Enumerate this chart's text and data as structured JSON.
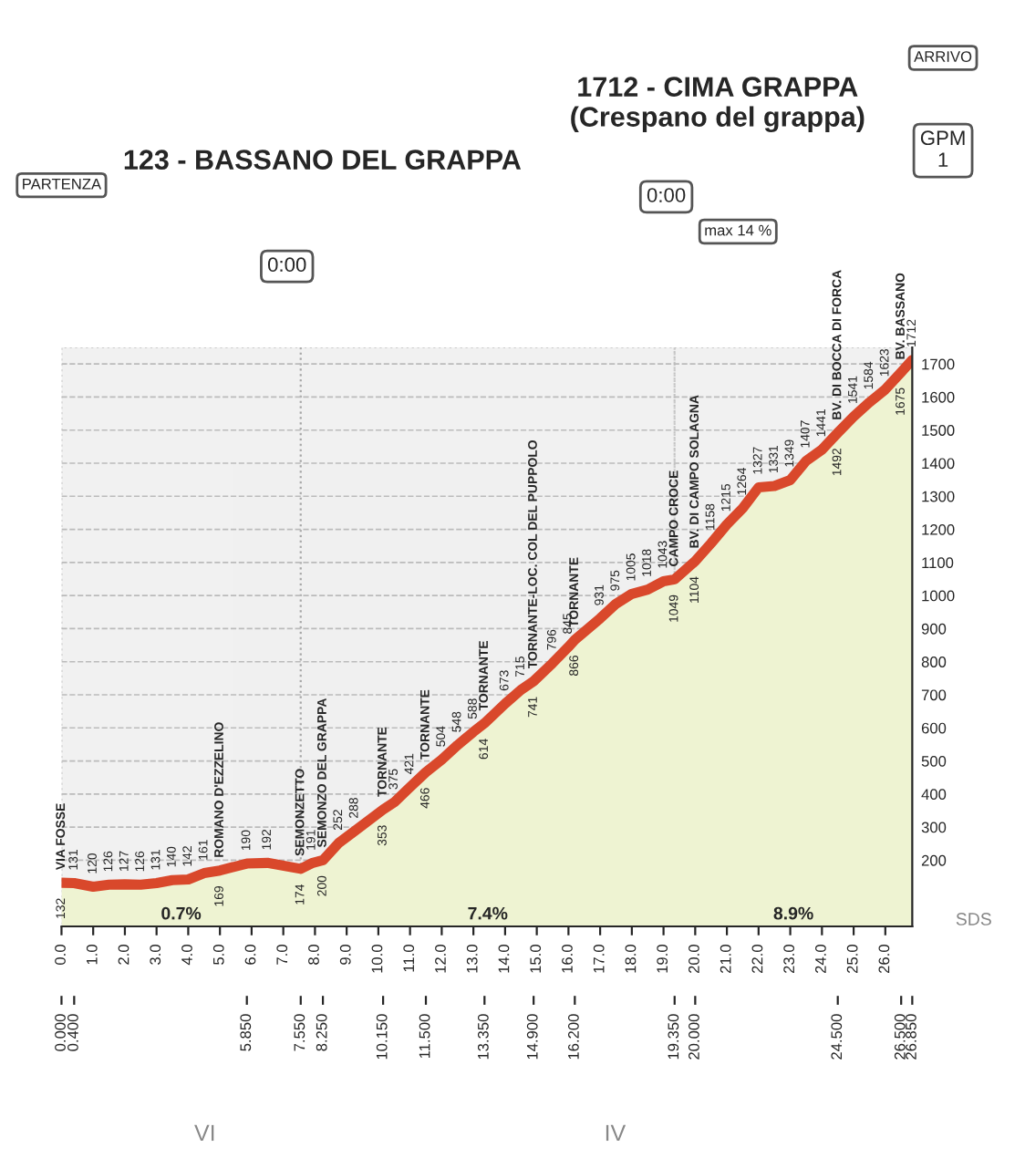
{
  "chart_data": {
    "type": "area",
    "color": "#d9482b",
    "x": [
      0,
      0.4,
      1,
      1.5,
      2,
      2.5,
      3,
      3.5,
      4,
      4.5,
      5,
      5.85,
      6.5,
      7.55,
      7.9,
      8.25,
      8.75,
      9.25,
      10.15,
      10.5,
      11,
      11.5,
      12,
      12.5,
      13,
      13.35,
      14,
      14.5,
      14.9,
      15.5,
      16,
      16.2,
      17,
      17.5,
      18,
      18.5,
      19,
      19.35,
      20,
      20.5,
      21,
      21.5,
      22,
      22.5,
      23,
      23.5,
      24,
      24.5,
      25,
      25.5,
      26,
      26.5,
      26.85
    ],
    "values": [
      132,
      131,
      120,
      126,
      127,
      126,
      131,
      140,
      142,
      161,
      169,
      190,
      192,
      174,
      191,
      200,
      252,
      288,
      353,
      375,
      421,
      466,
      504,
      548,
      588,
      614,
      673,
      715,
      741,
      796,
      845,
      866,
      931,
      975,
      1005,
      1018,
      1043,
      1049,
      1104,
      1158,
      1215,
      1264,
      1327,
      1331,
      1349,
      1407,
      1441,
      1492,
      1541,
      1584,
      1623,
      1675,
      1712
    ],
    "data_labels": true,
    "xlim": [
      0,
      26.85
    ],
    "x2lim": [
      0,
      26.85
    ],
    "ylim": [
      0,
      1750
    ],
    "xticks": [
      {
        "value": 0,
        "label": "0.0"
      },
      {
        "value": 1,
        "label": "1.0"
      },
      {
        "value": 2,
        "label": "2.0"
      },
      {
        "value": 3,
        "label": "3.0"
      },
      {
        "value": 4,
        "label": "4.0"
      },
      {
        "value": 5,
        "label": "5.0"
      },
      {
        "value": 6,
        "label": "6.0"
      },
      {
        "value": 7,
        "label": "7.0"
      },
      {
        "value": 8,
        "label": "8.0"
      },
      {
        "value": 9,
        "label": "9.0"
      },
      {
        "value": 10,
        "label": "10.0"
      },
      {
        "value": 11,
        "label": "11.0"
      },
      {
        "value": 12,
        "label": "12.0"
      },
      {
        "value": 13,
        "label": "13.0"
      },
      {
        "value": 14,
        "label": "14.0"
      },
      {
        "value": 15,
        "label": "15.0"
      },
      {
        "value": 16,
        "label": "16.0"
      },
      {
        "value": 17,
        "label": "17.0"
      },
      {
        "value": 18,
        "label": "18.0"
      },
      {
        "value": 19,
        "label": "19.0"
      },
      {
        "value": 20,
        "label": "20.0"
      },
      {
        "value": 21,
        "label": "21.0"
      },
      {
        "value": 22,
        "label": "22.0"
      },
      {
        "value": 23,
        "label": "23.0"
      },
      {
        "value": 24,
        "label": "24.0"
      },
      {
        "value": 25,
        "label": "25.0"
      },
      {
        "value": 26,
        "label": "26.0"
      }
    ],
    "x2ticks": [
      {
        "value": 0,
        "label": "0.000"
      },
      {
        "value": 0.4,
        "label": "0.400"
      },
      {
        "value": 5.85,
        "label": "5.850"
      },
      {
        "value": 7.55,
        "label": "7.550"
      },
      {
        "value": 8.25,
        "label": "8.250"
      },
      {
        "value": 10.15,
        "label": "10.150"
      },
      {
        "value": 11.5,
        "label": "11.500"
      },
      {
        "value": 13.35,
        "label": "13.350"
      },
      {
        "value": 14.9,
        "label": "14.900"
      },
      {
        "value": 16.2,
        "label": "16.200"
      },
      {
        "value": 19.35,
        "label": "19.350"
      },
      {
        "value": 20,
        "label": "20.000"
      },
      {
        "value": 24.5,
        "label": "24.500"
      },
      {
        "value": 26.5,
        "label": "26.500"
      },
      {
        "value": 26.85,
        "label": "26.850"
      }
    ],
    "yticks": [
      200,
      300,
      400,
      500,
      600,
      700,
      800,
      900,
      1000,
      1100,
      1200,
      1300,
      1400,
      1500,
      1600,
      1700
    ],
    "grid": "y",
    "bands": [
      {
        "axis": "x",
        "from": 0,
        "to": 7.55,
        "label": "0.7%",
        "color": "#d0d0d0"
      },
      {
        "axis": "x",
        "from": 7.55,
        "to": 19.35,
        "label": "7.4%",
        "color": "#d0d0d0"
      },
      {
        "axis": "x",
        "from": 19.35,
        "to": 26.85,
        "label": "8.9%",
        "color": "#d0d0d0"
      }
    ],
    "annotations": [
      {
        "text": "VIA FOSSE",
        "x": 0,
        "y": 132
      },
      {
        "text": "ROMANO D'EZZELINO",
        "x": 5,
        "y": 169
      },
      {
        "text": "SEMONZETTO",
        "x": 7.55,
        "y": 174
      },
      {
        "text": "SEMONZO DEL GRAPPA",
        "x": 8.25,
        "y": 200
      },
      {
        "text": "TORNANTE",
        "x": 10.15,
        "y": 353
      },
      {
        "text": "TORNANTE",
        "x": 11.5,
        "y": 466
      },
      {
        "text": "TORNANTE",
        "x": 13.35,
        "y": 614
      },
      {
        "text": "TORNANTE-LOC. COL DEL PUPPOLO",
        "x": 14.9,
        "y": 741
      },
      {
        "text": "TORNANTE",
        "x": 16.2,
        "y": 866
      },
      {
        "text": "CAMPO CROCE",
        "x": 19.35,
        "y": 1049
      },
      {
        "text": "BV. DI CAMPO SOLAGNA",
        "x": 20,
        "y": 1104
      },
      {
        "text": "BV. DI BOCCA DI FORCA",
        "x": 24.5,
        "y": 1492
      },
      {
        "text": "BV. BASSANO",
        "x": 26.5,
        "y": 1675
      },
      "123 - BASSANO DEL GRAPPA",
      "1712 - CIMA GRAPPA\n(Crespano del grappa)",
      "PARTENZA",
      "ARRIVO",
      "GPM\n1",
      "0:00",
      "0:00",
      "max 14 %",
      "VI",
      "IV",
      "SDS"
    ]
  }
}
